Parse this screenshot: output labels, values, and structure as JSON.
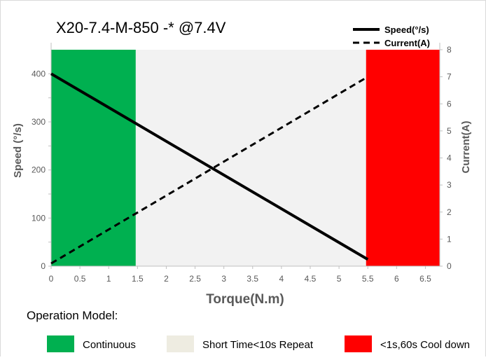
{
  "chart_data": {
    "type": "line",
    "title": "X20-7.4-M-850 -*  @7.4V",
    "xlabel": "Torque(N.m)",
    "ylabel_left": "Speed  (°/s)",
    "ylabel_right": "Current(A)",
    "xlim": [
      0,
      6.75
    ],
    "ylim_left": [
      0,
      450
    ],
    "ylim_right": [
      0,
      8
    ],
    "x_ticks": [
      "0",
      "0.5",
      "1",
      "1.5",
      "2",
      "2.5",
      "3",
      "3.5",
      "4",
      "4.5",
      "5",
      "5.5",
      "6",
      "6.5"
    ],
    "y_left_ticks": [
      "0",
      "100",
      "200",
      "300",
      "400"
    ],
    "y_right_ticks": [
      "0",
      "1",
      "2",
      "3",
      "4",
      "5",
      "6",
      "7",
      "8"
    ],
    "series": [
      {
        "name": "Speed(°/s)",
        "axis": "left",
        "style": "solid",
        "x": [
          0,
          5.5
        ],
        "y": [
          400,
          14
        ]
      },
      {
        "name": "Current(A)",
        "axis": "right",
        "style": "dashed",
        "x": [
          0,
          5.5
        ],
        "y": [
          0.1,
          7
        ]
      }
    ],
    "regions": [
      {
        "x0": 0,
        "x1": 1.47,
        "color": "#00b050"
      },
      {
        "x0": 1.47,
        "x1": 5.47,
        "color": "#f2f2f2"
      },
      {
        "x0": 5.47,
        "x1": 6.75,
        "color": "#ff0000"
      }
    ],
    "grid": false,
    "legend_position": "top-right"
  },
  "operation_model": {
    "heading": "Operation Model:",
    "items": [
      {
        "label": "Continuous",
        "color": "#00b050"
      },
      {
        "label": "Short Time<10s Repeat",
        "color": "#eeece1"
      },
      {
        "label": "<1s,60s Cool down",
        "color": "#ff0000"
      }
    ]
  }
}
